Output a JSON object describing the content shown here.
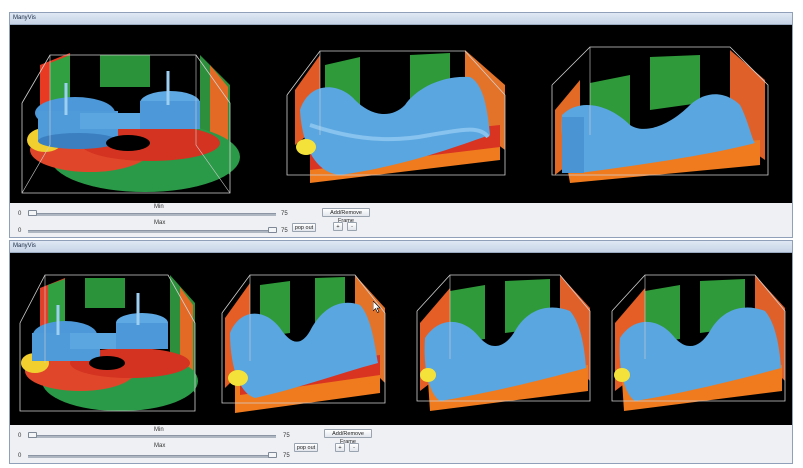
{
  "windows": [
    {
      "title": "ManyVis",
      "min_label": "Min",
      "max_label": "Max",
      "min_value": "0",
      "max_value": "0",
      "range_end_min": "75",
      "range_end_max": "75",
      "pop_out_label": "pop out",
      "add_remove_label": "Add/Remove Frame",
      "plus_label": "+",
      "minus_label": "-"
    },
    {
      "title": "ManyVis",
      "min_label": "Min",
      "max_label": "Max",
      "min_value": "0",
      "max_value": "0",
      "range_end_min": "75",
      "range_end_max": "75",
      "pop_out_label": "pop out",
      "add_remove_label": "Add/Remove Frame",
      "plus_label": "+",
      "minus_label": "-"
    }
  ],
  "icons": {
    "cursor": "mouse-pointer-icon"
  },
  "colors": {
    "viewport_bg": "#000000",
    "surface_blue": "#5aa6e0",
    "surface_green": "#2f9a3a",
    "surface_orange": "#f07a1e",
    "surface_red": "#d23820",
    "surface_yellow": "#f4e23a",
    "box_lines": "#d8d8d8"
  }
}
